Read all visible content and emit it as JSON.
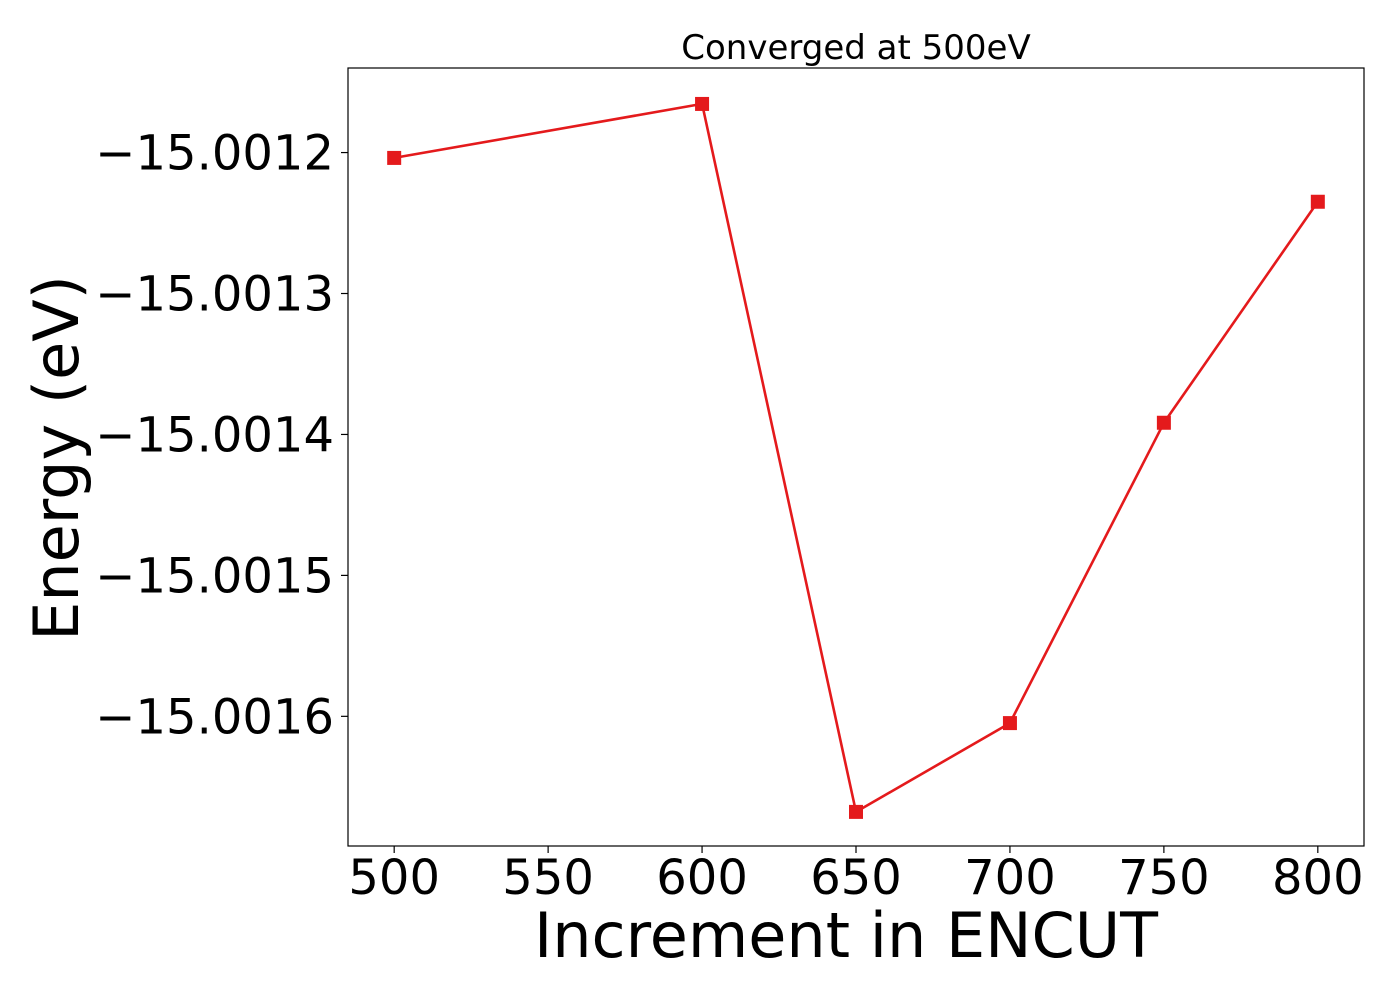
{
  "chart_data": {
    "type": "line",
    "title": "Converged at 500eV",
    "xlabel": "Increment in ENCUT",
    "ylabel": "Energy (eV)",
    "x": [
      500,
      600,
      650,
      700,
      750,
      800
    ],
    "series": [
      {
        "values": [
          -15.0012038,
          -15.0011655,
          -15.0016678,
          -15.0016048,
          -15.0013917,
          -15.0012349
        ],
        "color": "#e41a1c",
        "marker": "square"
      }
    ],
    "xticks": [
      500,
      550,
      600,
      650,
      700,
      750,
      800
    ],
    "xtick_labels": [
      "500",
      "550",
      "600",
      "650",
      "700",
      "750",
      "800"
    ],
    "yticks": [
      -15.0012,
      -15.0013,
      -15.0014,
      -15.0015,
      -15.0016
    ],
    "ytick_labels": [
      "−15.0012",
      "−15.0013",
      "−15.0014",
      "−15.0015",
      "−15.0016"
    ],
    "xlim": [
      485,
      815
    ],
    "ylim": [
      -15.001692,
      -15.00114
    ],
    "grid": false,
    "legend": "none"
  }
}
